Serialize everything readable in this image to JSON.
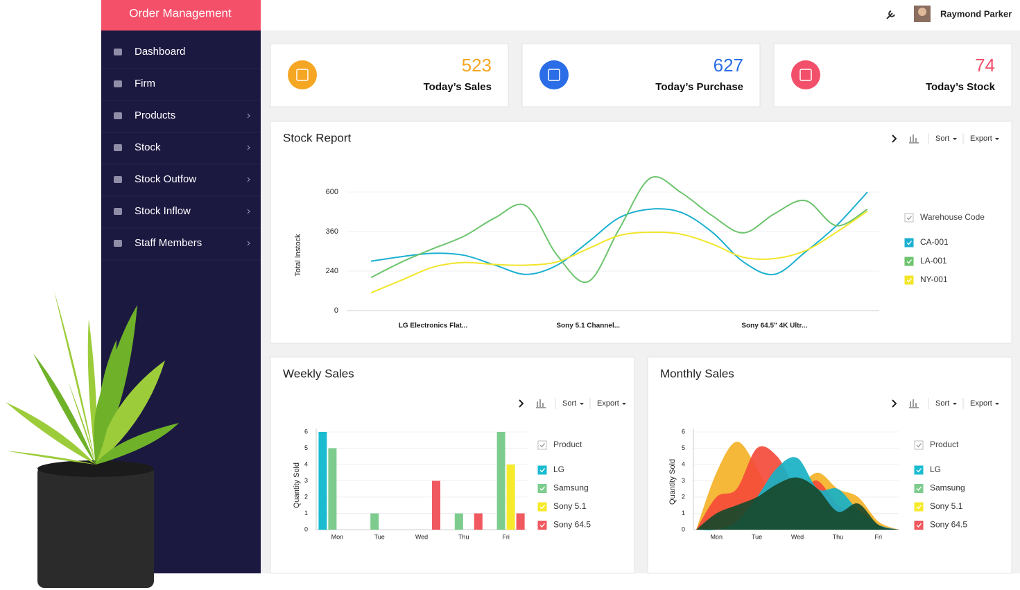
{
  "sidebar": {
    "title": "Order Management",
    "menu": [
      "Dashboard",
      "Firm",
      "Products",
      "Stock",
      "Stock Outfow",
      "Stock Inflow",
      "Staff Members"
    ]
  },
  "header": {
    "user": "Raymond Parker"
  },
  "toolbar": {
    "sort": "Sort",
    "export": "Export"
  },
  "cards": [
    {
      "value": 523,
      "label": "Today’s Sales",
      "color": "#f5a623"
    },
    {
      "value": 627,
      "label": "Today’s Purchase",
      "color": "#2b6de6"
    },
    {
      "value": 74,
      "label": "Today’s Stock",
      "color": "#f2506a"
    }
  ],
  "chart_data": [
    {
      "type": "line",
      "title": "Stock Report",
      "y_label": "Total Instock",
      "legend_title": "Warehouse Code",
      "categories": [
        null,
        null,
        "LG Electronics Flat...",
        null,
        null,
        null,
        null,
        "Sony 5.1 Channel...",
        null,
        null,
        null,
        null,
        null,
        "Sony 64.5\" 4K Ultr...",
        null,
        null,
        null
      ],
      "ylim": [
        0,
        720
      ],
      "yticks": [
        0,
        240,
        360,
        600
      ],
      "grid": true,
      "series": [
        {
          "name": "CA-001",
          "color": "#1bb0d0",
          "values": [
            270,
            284,
            294,
            288,
            258,
            220,
            258,
            328,
            444,
            496,
            476,
            358,
            268,
            220,
            298,
            396,
            600
          ]
        },
        {
          "name": "LA-001",
          "color": "#6cc46c",
          "values": [
            201,
            268,
            308,
            346,
            444,
            516,
            288,
            176,
            376,
            684,
            596,
            456,
            356,
            468,
            548,
            396,
            496
          ]
        },
        {
          "name": "NY-001",
          "color": "#f2e52a",
          "values": [
            108,
            186,
            252,
            266,
            260,
            258,
            268,
            308,
            348,
            358,
            352,
            322,
            282,
            278,
            302,
            358,
            484
          ]
        }
      ]
    },
    {
      "type": "bar",
      "title": "Weekly Sales",
      "y_label": "Quantity Sold",
      "legend_title": "Product",
      "categories": [
        "Mon",
        "Tue",
        "Wed",
        "Thu",
        "Fri"
      ],
      "ylim": [
        0,
        6
      ],
      "yticks": [
        0,
        1,
        2,
        3,
        4,
        5,
        6
      ],
      "grid": true,
      "series": [
        {
          "name": "LG",
          "color": "#1bbcd0",
          "values": [
            6,
            0,
            0,
            0,
            0
          ]
        },
        {
          "name": "Samsung",
          "color": "#7dcc8e",
          "values": [
            5,
            1,
            0,
            1,
            6
          ]
        },
        {
          "name": "Sony 5.1",
          "color": "#f7ea2b",
          "values": [
            0,
            0,
            0,
            0,
            4
          ]
        },
        {
          "name": "Sony 64.5",
          "color": "#f0595f",
          "values": [
            0,
            0,
            3,
            1,
            1
          ]
        }
      ]
    },
    {
      "type": "area",
      "title": "Monthly Sales",
      "y_label": "Quantity Sold",
      "legend_title": "Product",
      "categories": [
        null,
        "Mon",
        null,
        "Tue",
        null,
        "Wed",
        null,
        "Thu",
        null,
        "Fri",
        null
      ],
      "ylim": [
        0,
        6
      ],
      "yticks": [
        0,
        1,
        2,
        3,
        4,
        5,
        6
      ],
      "grid": true,
      "series": [
        {
          "name": "LG",
          "color": "#1bbcd0",
          "area_color": "#17b1c4",
          "values": [
            0,
            0,
            0.5,
            2,
            3.8,
            4.4,
            2.5,
            2.5,
            1.2,
            0.3,
            0
          ]
        },
        {
          "name": "Samsung",
          "color": "#7dcc8e",
          "area_color": "#17492c",
          "values": [
            0,
            1,
            1.5,
            2,
            2.8,
            3.2,
            2.5,
            1.1,
            1.6,
            0.3,
            0
          ]
        },
        {
          "name": "Sony 5.1",
          "color": "#f7ea2b",
          "area_color": "#f4b228",
          "values": [
            0,
            3.5,
            5.4,
            3.8,
            1.5,
            2.5,
            3.5,
            2.5,
            2,
            0.5,
            0
          ]
        },
        {
          "name": "Sony 64.5",
          "color": "#f0595f",
          "area_color": "#f44b3a",
          "values": [
            0,
            2,
            2.5,
            5,
            4.5,
            2.5,
            3,
            1.5,
            1.2,
            0.3,
            0
          ]
        }
      ]
    }
  ]
}
